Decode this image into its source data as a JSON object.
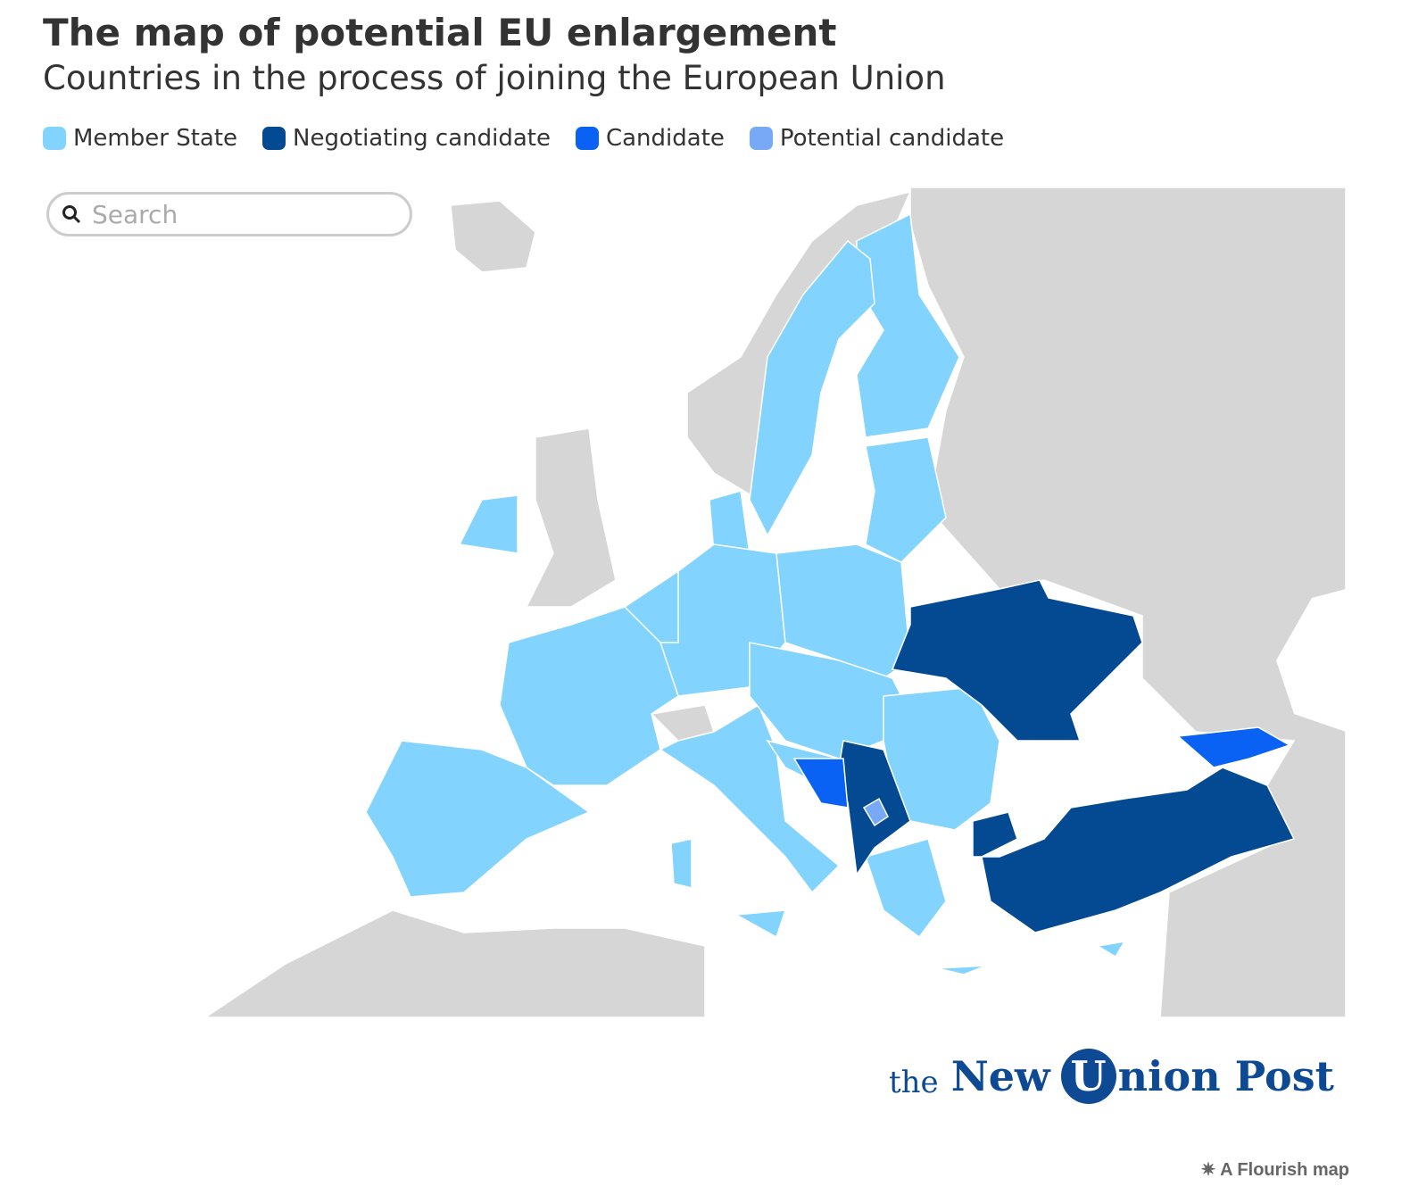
{
  "header": {
    "title": "The map of potential EU enlargement",
    "subtitle": "Countries in the process of joining the European Union"
  },
  "legend": [
    {
      "label": "Member State",
      "color": "#82d3fd"
    },
    {
      "label": "Negotiating candidate",
      "color": "#034a92"
    },
    {
      "label": "Candidate",
      "color": "#0a62f5"
    },
    {
      "label": "Potential candidate",
      "color": "#78a9f7"
    }
  ],
  "search": {
    "placeholder": "Search"
  },
  "logo": {
    "prefix": "the",
    "word1": "New",
    "initial": "U",
    "rest": "nion Post"
  },
  "footer": {
    "attribution": "A Flourish map"
  }
}
